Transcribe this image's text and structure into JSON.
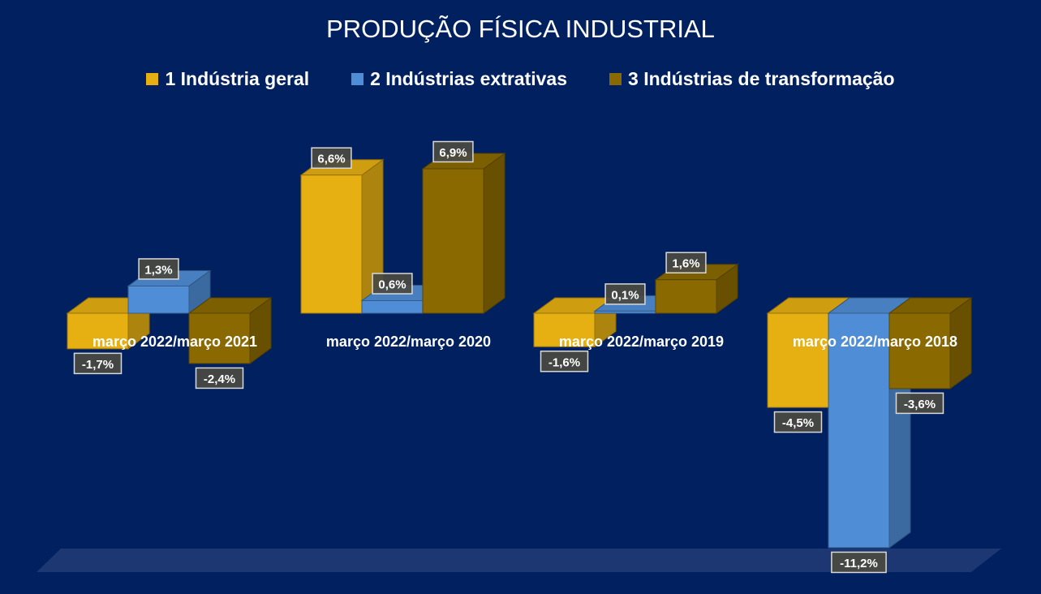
{
  "chart_data": {
    "type": "bar",
    "title": "PRODUÇÃO FÍSICA INDUSTRIAL",
    "categories": [
      "março 2022/março 2021",
      "março 2022/março 2020",
      "março 2022/março 2019",
      "março 2022/março 2018"
    ],
    "series": [
      {
        "name": "1 Indústria geral",
        "color": "#e6b012",
        "values": [
          -1.7,
          6.6,
          -1.6,
          -4.5
        ],
        "labels": [
          "-1,7%",
          "6,6%",
          "-1,6%",
          "-4,5%"
        ]
      },
      {
        "name": "2 Indústrias extrativas",
        "color": "#4f8dd6",
        "values": [
          1.3,
          0.6,
          0.1,
          -11.2
        ],
        "labels": [
          "1,3%",
          "0,6%",
          "0,1%",
          "-11,2%"
        ]
      },
      {
        "name": "3 Indústrias de transformação",
        "color": "#8a6a00",
        "values": [
          -2.4,
          6.9,
          1.6,
          -3.6
        ],
        "labels": [
          "-2,4%",
          "6,9%",
          "1,6%",
          "-3,6%"
        ]
      }
    ],
    "legend_position": "top",
    "grid": false,
    "ylim": [
      -11.2,
      6.9
    ]
  }
}
